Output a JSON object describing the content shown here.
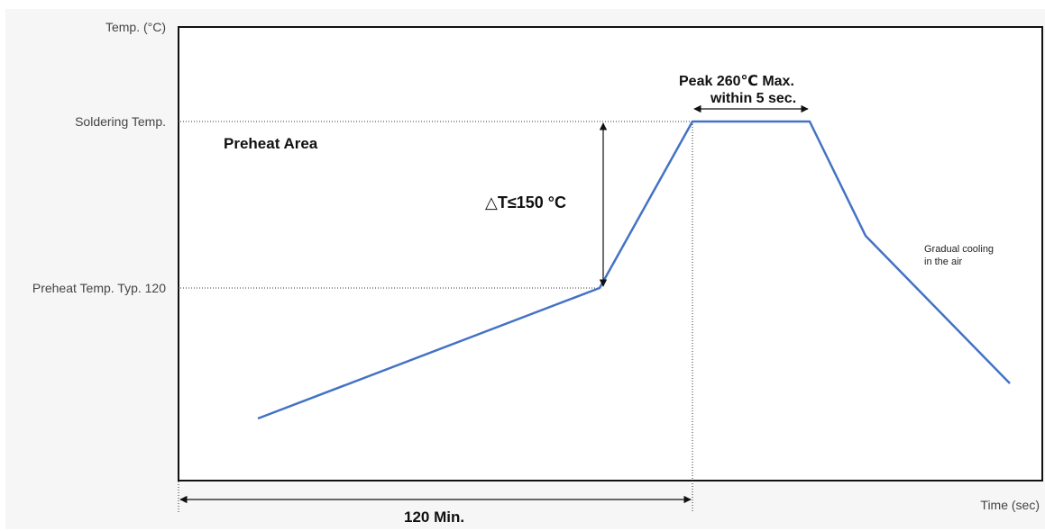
{
  "axis": {
    "y_title": "Temp. (°C)",
    "x_title": "Time (sec)",
    "soldering_temp": "Soldering Temp.",
    "preheat_temp": "Preheat Temp. Typ. 120"
  },
  "annotations": {
    "preheat_area": "Preheat Area",
    "delta_t": "△T≤150 °C",
    "peak_line1": "Peak 260℃ Max.",
    "peak_line2": "within 5 sec.",
    "cooling_line1": "Gradual cooling",
    "cooling_line2": "in the air",
    "duration": "120 Min."
  },
  "colors": {
    "profile": "#4472c4",
    "frame": "#111111",
    "guide": "#333333",
    "backdrop": "#f6f6f6"
  }
}
